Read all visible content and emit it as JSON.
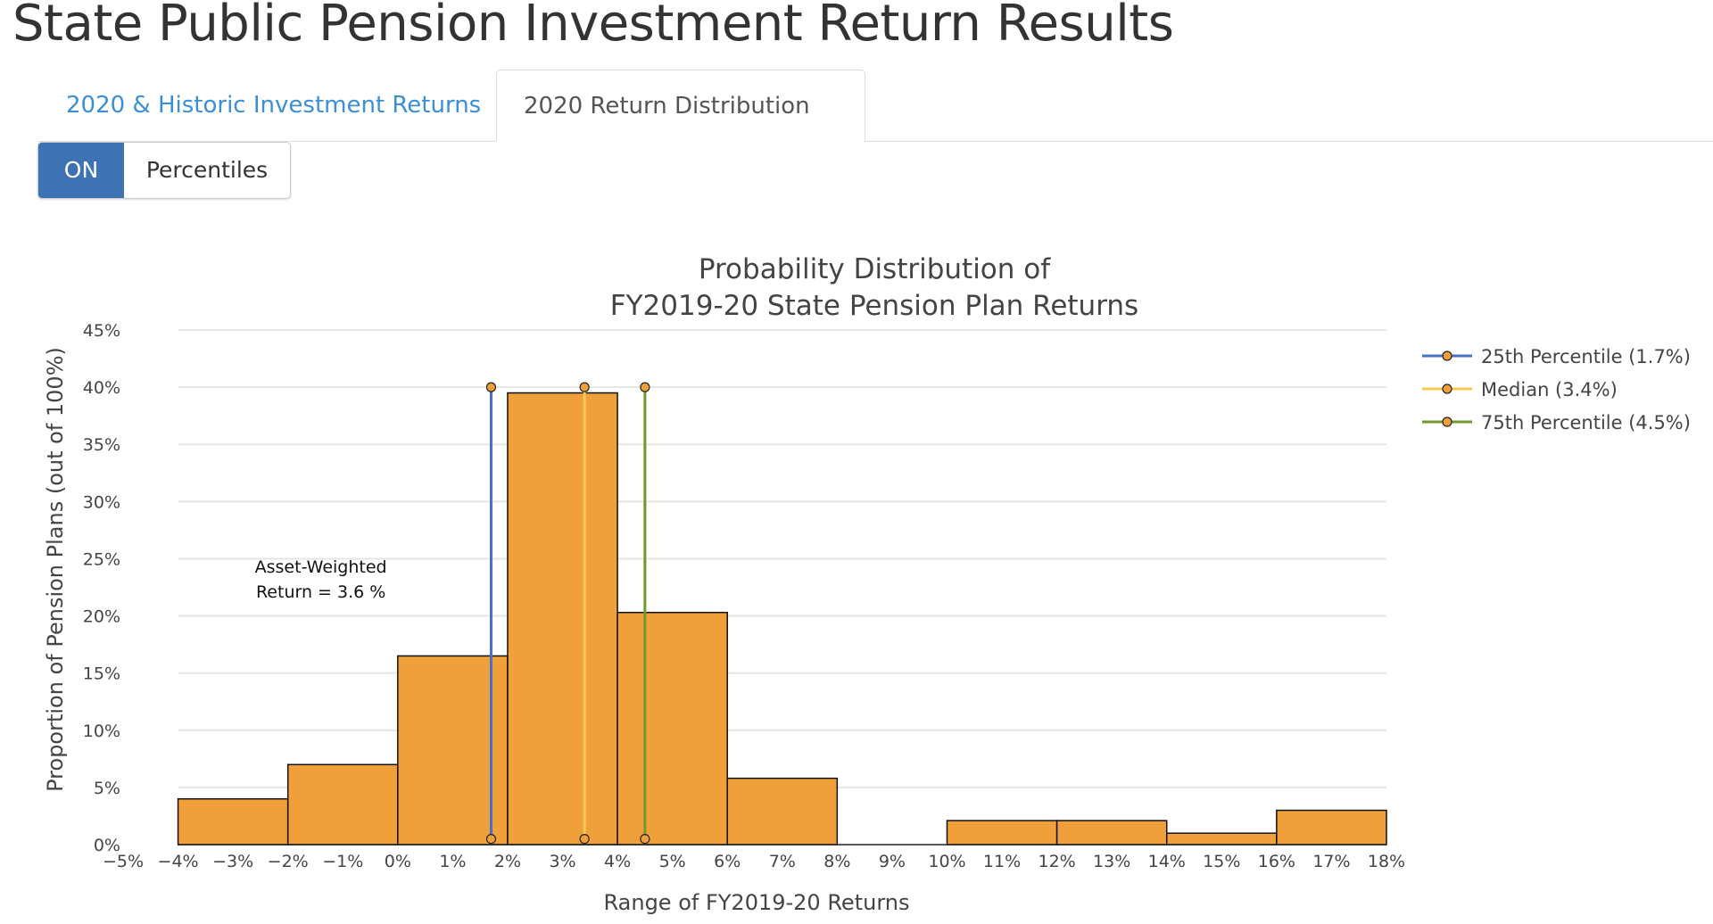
{
  "page": {
    "title": "State Public Pension Investment Return Results"
  },
  "tabs": [
    {
      "label": "2020 & Historic Investment Returns",
      "active": false
    },
    {
      "label": "2020 Return Distribution",
      "active": true
    }
  ],
  "toggle": {
    "state_label": "ON",
    "label": "Percentiles"
  },
  "colors": {
    "bar_fill": "#f0a03a",
    "bar_stroke": "#111111",
    "p25": "#4a6fc9",
    "median": "#f5c94e",
    "p75": "#6e9a2c",
    "marker": "#f0a03a",
    "tab_link": "#3a8fd6",
    "toggle_on_bg": "#3d72b4"
  },
  "chart_data": {
    "type": "bar",
    "title_lines": [
      "Probability Distribution of",
      "FY2019-20 State Pension Plan Returns"
    ],
    "xlabel": "Range of FY2019-20 Returns",
    "ylabel": "Proportion of Pension Plans (out of 100%)",
    "xlim": [
      -5,
      18
    ],
    "ylim": [
      0,
      45
    ],
    "x_ticks": [
      -5,
      -4,
      -3,
      -2,
      -1,
      0,
      1,
      2,
      3,
      4,
      5,
      6,
      7,
      8,
      9,
      10,
      11,
      12,
      13,
      14,
      15,
      16,
      17,
      18
    ],
    "x_tick_labels": [
      "−5%",
      "−4%",
      "−3%",
      "−2%",
      "−1%",
      "0%",
      "1%",
      "2%",
      "3%",
      "4%",
      "5%",
      "6%",
      "7%",
      "8%",
      "9%",
      "10%",
      "11%",
      "12%",
      "13%",
      "14%",
      "15%",
      "16%",
      "17%",
      "18%"
    ],
    "y_ticks": [
      0,
      5,
      10,
      15,
      20,
      25,
      30,
      35,
      40,
      45
    ],
    "y_tick_labels": [
      "0%",
      "5%",
      "10%",
      "15%",
      "20%",
      "25%",
      "30%",
      "35%",
      "40%",
      "45%"
    ],
    "grid": true,
    "bins": [
      {
        "from": -4,
        "to": -2,
        "value": 4
      },
      {
        "from": -2,
        "to": 0,
        "value": 7
      },
      {
        "from": 0,
        "to": 2,
        "value": 16.5
      },
      {
        "from": 2,
        "to": 4,
        "value": 39.5
      },
      {
        "from": 4,
        "to": 6,
        "value": 20.3
      },
      {
        "from": 6,
        "to": 8,
        "value": 5.8
      },
      {
        "from": 10,
        "to": 12,
        "value": 2.1
      },
      {
        "from": 12,
        "to": 14,
        "value": 2.1
      },
      {
        "from": 14,
        "to": 16,
        "value": 1
      },
      {
        "from": 16,
        "to": 18,
        "value": 3
      }
    ],
    "percentile_lines": [
      {
        "name": "25th Percentile (1.7%)",
        "x": 1.7,
        "y_range": [
          0.5,
          40
        ],
        "color_key": "p25"
      },
      {
        "name": "Median (3.4%)",
        "x": 3.4,
        "y_range": [
          0.5,
          40
        ],
        "color_key": "median"
      },
      {
        "name": "75th Percentile (4.5%)",
        "x": 4.5,
        "y_range": [
          0.5,
          40
        ],
        "color_key": "p75"
      }
    ],
    "legend_position": "top-right",
    "annotation": {
      "lines": [
        "Asset-Weighted",
        "Return = 3.6 %"
      ],
      "x": -1.4,
      "y": 23
    }
  }
}
